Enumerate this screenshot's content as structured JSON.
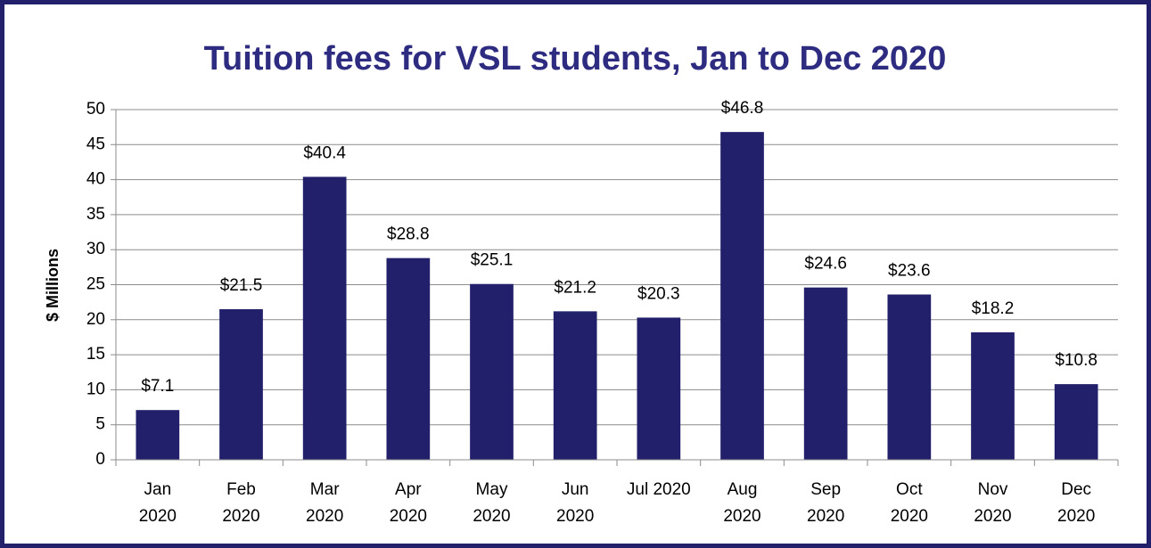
{
  "chart_data": {
    "type": "bar",
    "title": "Tuition fees for VSL students, Jan to Dec 2020",
    "y_label": "$ Millions",
    "categories": [
      "Jan\n2020",
      "Feb\n2020",
      "Mar\n2020",
      "Apr\n2020",
      "May\n2020",
      "Jun\n2020",
      "Jul 2020",
      "Aug\n2020",
      "Sep\n2020",
      "Oct\n2020",
      "Nov\n2020",
      "Dec\n2020"
    ],
    "values": [
      7.1,
      21.5,
      40.4,
      28.8,
      25.1,
      21.2,
      20.3,
      46.8,
      24.6,
      23.6,
      18.2,
      10.8
    ],
    "value_labels": [
      "$7.1",
      "$21.5",
      "$40.4",
      "$28.8",
      "$25.1",
      "$21.2",
      "$20.3",
      "$46.8",
      "$24.6",
      "$23.6",
      "$18.2",
      "$10.8"
    ],
    "color": "#22206a",
    "ylim": [
      0,
      50
    ],
    "yticks": [
      0,
      5,
      10,
      15,
      20,
      25,
      30,
      35,
      40,
      45,
      50
    ],
    "grid": true
  }
}
